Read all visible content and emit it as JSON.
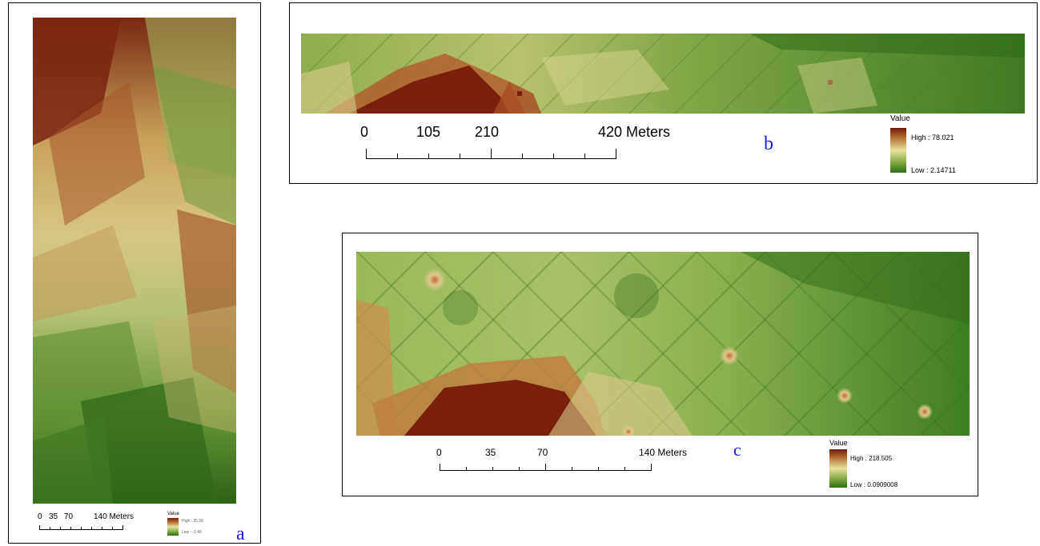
{
  "figure": {
    "panels": [
      {
        "id": "a",
        "letter": "a",
        "scale": {
          "ticks": [
            "0",
            "35",
            "70",
            "140 Meters"
          ]
        },
        "legend": {
          "title": "Value",
          "high": "High : 35.58",
          "low": "Low : -3.46"
        }
      },
      {
        "id": "b",
        "letter": "b",
        "scale": {
          "ticks": [
            "0",
            "105",
            "210",
            "420 Meters"
          ]
        },
        "legend": {
          "title": "Value",
          "high": "High : 78.021",
          "low": "Low : 2.14711"
        }
      },
      {
        "id": "c",
        "letter": "c",
        "scale": {
          "ticks": [
            "0",
            "35",
            "70",
            "140 Meters"
          ]
        },
        "legend": {
          "title": "Value",
          "high": "High : 218.505",
          "low": "Low : 0.0909008"
        }
      }
    ]
  },
  "colors": {
    "high": "#6f1a0a",
    "mid_high": "#b0672d",
    "mid": "#e8e29c",
    "mid_low": "#7fa63c",
    "low": "#2f6b18",
    "panel_letter": "#1a1ae0"
  }
}
